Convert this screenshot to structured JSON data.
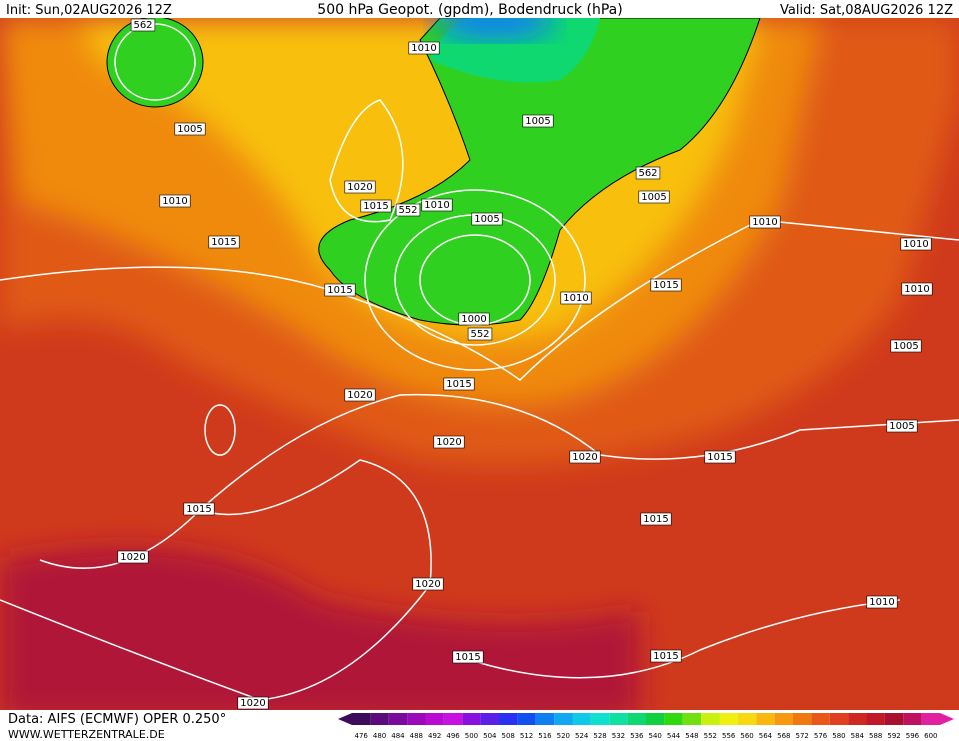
{
  "header": {
    "init": "Init: Sun,02AUG2026 12Z",
    "title": "500 hPa Geopot. (gpdm), Bodendruck (hPa)",
    "valid": "Valid: Sat,08AUG2026 12Z"
  },
  "footer": {
    "source": "Data: AIFS (ECMWF) OPER 0.250°",
    "site": "WWW.WETTERZENTRALE.DE"
  },
  "isobar_labels": [
    562,
    1010,
    1005,
    1005,
    1020,
    1015,
    552,
    1010,
    1005,
    1010,
    1015,
    1015,
    562,
    1005,
    1010,
    1010,
    1010,
    1015,
    1010,
    1000,
    552,
    1005,
    1015,
    1020,
    1020,
    1020,
    1015,
    1005,
    1015,
    1015,
    1020,
    1020,
    1010,
    1015,
    1015,
    1020
  ],
  "scale": {
    "levels": [
      476,
      480,
      484,
      488,
      492,
      496,
      500,
      504,
      508,
      512,
      516,
      520,
      524,
      528,
      532,
      536,
      540,
      544,
      548,
      552,
      556,
      560,
      564,
      568,
      572,
      576,
      580,
      584,
      588,
      592,
      596,
      600
    ],
    "colors": [
      "#3d0a5c",
      "#5a0a7a",
      "#7a0a9a",
      "#9a0ab8",
      "#b80ad0",
      "#c810e0",
      "#8a10e0",
      "#5a20e8",
      "#2a30f0",
      "#1050f0",
      "#1080f0",
      "#10a8f0",
      "#10c8e8",
      "#10e0d0",
      "#10e0a0",
      "#10d870",
      "#10d040",
      "#30d810",
      "#70e010",
      "#c8f010",
      "#f0f010",
      "#f8d810",
      "#f8b810",
      "#f89810",
      "#f07810",
      "#e85818",
      "#e04020",
      "#d02820",
      "#c01828",
      "#a81030",
      "#c01060",
      "#e020a0"
    ]
  }
}
